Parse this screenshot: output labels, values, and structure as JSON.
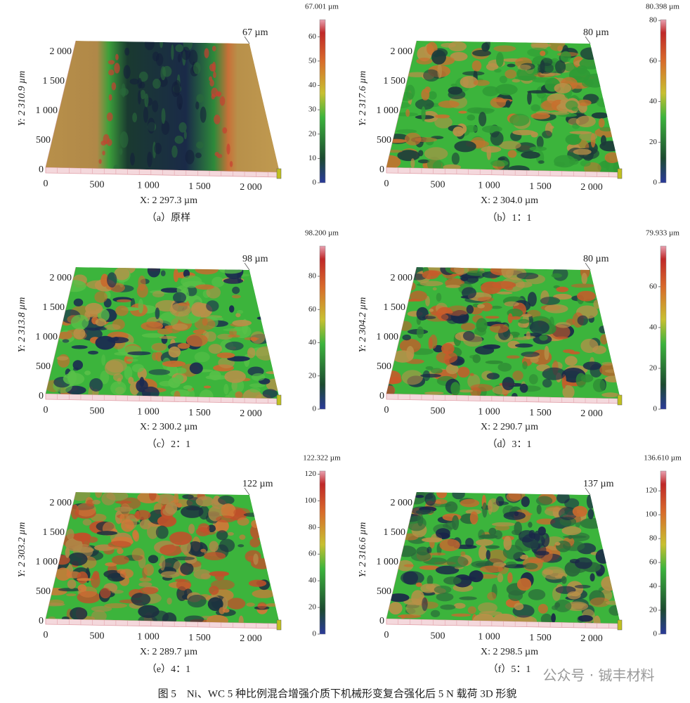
{
  "panels": [
    {
      "max_label": "67.001 µm",
      "peak_label": "67 µm",
      "y_label": "Y: 2 310.9 µm",
      "x_label": "X: 2 297.3 µm",
      "caption": "（a）原样",
      "y_ticks": [
        "0",
        "500",
        "1 000",
        "1 500",
        "2 000"
      ],
      "x_ticks": [
        "0",
        "500",
        "1 000",
        "1 500",
        "2 000"
      ],
      "colorbar_ticks": [
        0,
        10,
        20,
        30,
        40,
        50,
        60
      ]
    },
    {
      "max_label": "80.398 µm",
      "peak_label": "80 µm",
      "y_label": "Y: 2 317.6 µm",
      "x_label": "X: 2 304.0 µm",
      "caption": "（b）1：1",
      "y_ticks": [
        "0",
        "500",
        "1 000",
        "1 500",
        "2 000"
      ],
      "x_ticks": [
        "0",
        "500",
        "1 000",
        "1 500",
        "2 000"
      ],
      "colorbar_ticks": [
        0,
        20,
        40,
        60,
        80
      ]
    },
    {
      "max_label": "98.200 µm",
      "peak_label": "98 µm",
      "y_label": "Y: 2 313.8 µm",
      "x_label": "X: 2 300.2 µm",
      "caption": "（c）2：1",
      "y_ticks": [
        "0",
        "500",
        "1 000",
        "1 500",
        "2 000"
      ],
      "x_ticks": [
        "0",
        "500",
        "1 000",
        "1 500",
        "2 000"
      ],
      "colorbar_ticks": [
        0,
        20,
        40,
        60,
        80
      ]
    },
    {
      "max_label": "79.933 µm",
      "peak_label": "80 µm",
      "y_label": "Y: 2 304.2 µm",
      "x_label": "X: 2 290.7 µm",
      "caption": "（d）3：1",
      "y_ticks": [
        "0",
        "500",
        "1 000",
        "1 500",
        "2 000"
      ],
      "x_ticks": [
        "0",
        "500",
        "1 000",
        "1 500",
        "2 000"
      ],
      "colorbar_ticks": [
        0,
        20,
        40,
        60
      ]
    },
    {
      "max_label": "122.322 µm",
      "peak_label": "122 µm",
      "y_label": "Y: 2 303.2 µm",
      "x_label": "X: 2 289.7 µm",
      "caption": "（e）4：1",
      "y_ticks": [
        "0",
        "500",
        "1 000",
        "1 500",
        "2 000"
      ],
      "x_ticks": [
        "0",
        "500",
        "1 000",
        "1 500",
        "2 000"
      ],
      "colorbar_ticks": [
        0,
        20,
        40,
        60,
        80,
        100,
        120
      ]
    },
    {
      "max_label": "136.610 µm",
      "peak_label": "137 µm",
      "y_label": "Y: 2 316.6 µm",
      "x_label": "X: 2 298.5 µm",
      "caption": "（f）5：1",
      "y_ticks": [
        "0",
        "500",
        "1 000",
        "1 500",
        "2 000"
      ],
      "x_ticks": [
        "0",
        "500",
        "1 000",
        "1 500",
        "2 000"
      ],
      "colorbar_ticks": [
        0,
        20,
        40,
        60,
        80,
        100,
        120
      ]
    }
  ],
  "figure_caption": "图 5　Ni、WC 5 种比例混合增强介质下机械形变复合强化后 5 N 载荷 3D 形貌",
  "watermark": "公众号 · 铖丰材料"
}
